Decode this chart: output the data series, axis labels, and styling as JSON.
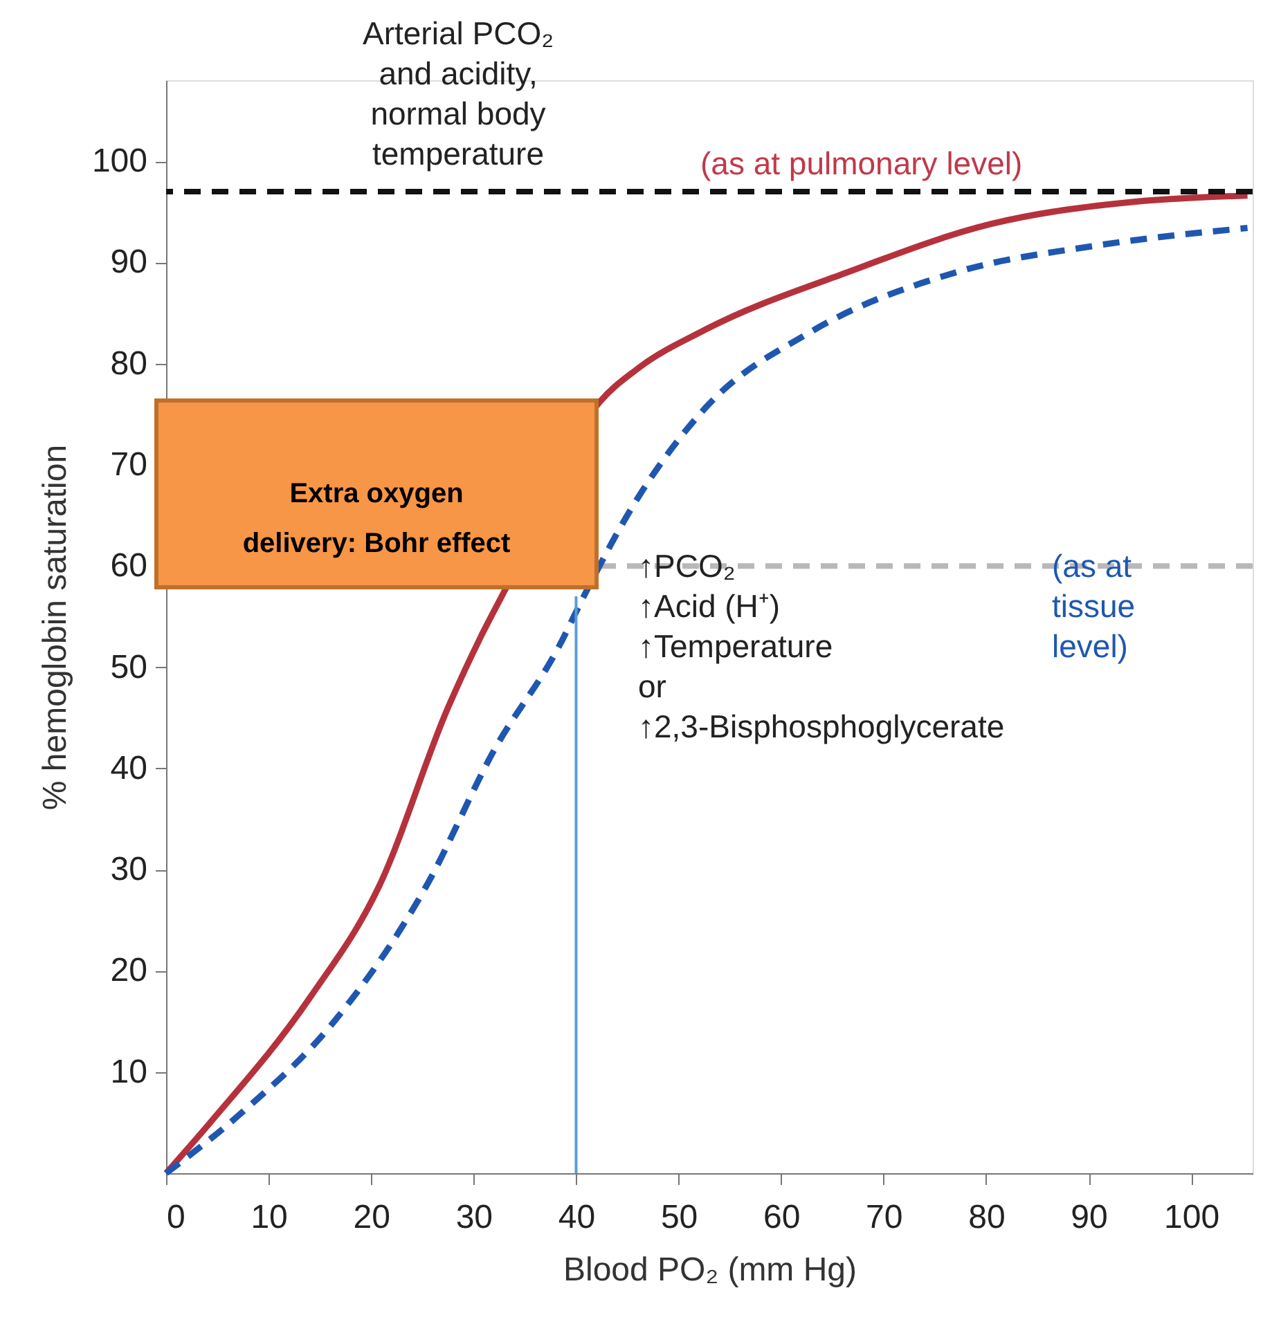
{
  "chart_data": {
    "type": "line",
    "xlabel": "Blood PO₂ (mm Hg)",
    "ylabel": "% hemoglobin saturation",
    "xlim": [
      0,
      106
    ],
    "ylim": [
      0,
      108
    ],
    "xticks": [
      0,
      10,
      20,
      30,
      40,
      50,
      60,
      70,
      80,
      90,
      100
    ],
    "yticks": [
      10,
      20,
      30,
      40,
      50,
      60,
      70,
      80,
      90,
      100
    ],
    "grid": false,
    "marker": "none",
    "series": [
      {
        "color": "#b5323c",
        "line_style": "solid",
        "x": [
          0,
          4.3,
          14,
          20.8,
          27.5,
          30.7,
          33,
          42.3,
          46,
          52.5,
          66.4,
          80.5,
          94.6,
          105.5
        ],
        "values": [
          0,
          5,
          17.3,
          28.4,
          46,
          53,
          57.5,
          76.2,
          79.5,
          83.3,
          89,
          93.8,
          96,
          96.6
        ]
      },
      {
        "color": "#1f57b0",
        "line_style": "dashed",
        "x": [
          0,
          7.4,
          16.4,
          25.4,
          32,
          38.3,
          41,
          45.4,
          52.5,
          63,
          77,
          91,
          105.5
        ],
        "values": [
          0,
          6,
          15,
          28.4,
          41.8,
          52,
          57.5,
          65.7,
          75.5,
          83.2,
          89,
          91.7,
          93.4
        ]
      },
      {
        "color": "#5b9bd5",
        "line_style": "solid",
        "x": [
          40,
          40
        ],
        "values": [
          0,
          57
        ]
      }
    ],
    "ref_lines": [
      {
        "axis": "y",
        "value": 97,
        "color": "#111111",
        "line_style": "dashed"
      },
      {
        "axis": "y",
        "value": 60,
        "color": "#b8b8b8",
        "line_style": "dashed"
      }
    ],
    "annotations": [
      "Arterial PCO₂\nand acidity,\nnormal body\ntemperature",
      "(as at pulmonary level)",
      "↑PCO₂\n↑Acid (H⁺)\n↑Temperature\nor\n↑2,3-Bisphosphoglycerate",
      "(as at\ntissue\nlevel)",
      "Extra oxygen\ndelivery: Bohr effect"
    ]
  }
}
